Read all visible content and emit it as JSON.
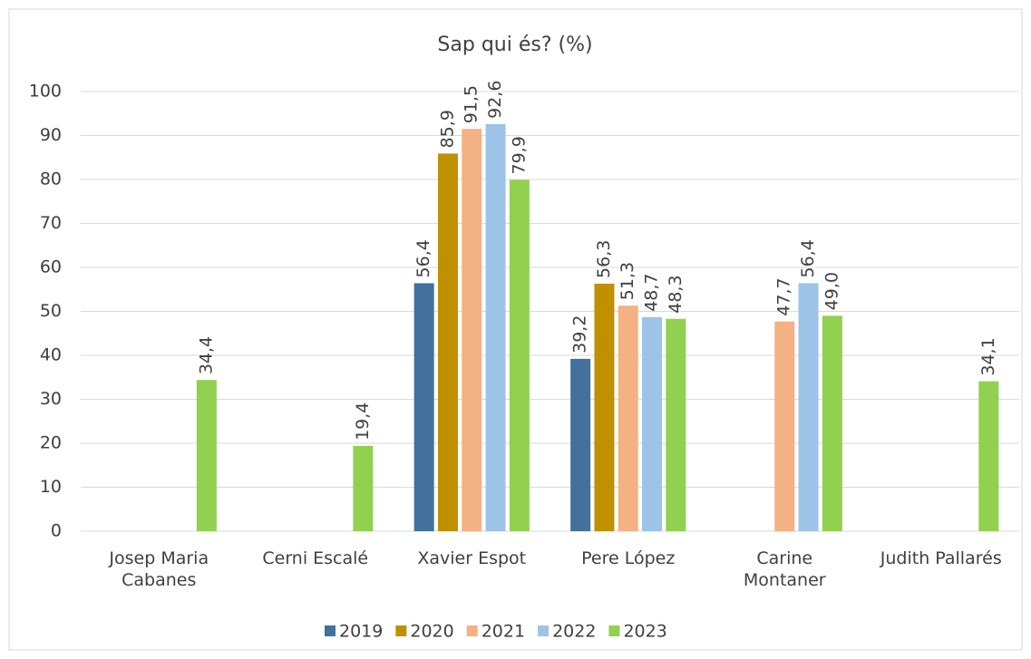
{
  "chart_data": {
    "type": "bar",
    "title": "Sap qui és? (%)",
    "categories": [
      "Josep Maria Cabanes",
      "Cerni Escalé",
      "Xavier Espot",
      "Pere López",
      "Carine Montaner",
      "Judith Pallarés"
    ],
    "series": [
      {
        "name": "2019",
        "color": "#41719c",
        "values": [
          null,
          null,
          56.4,
          39.2,
          null,
          null
        ],
        "value_labels": [
          null,
          null,
          "56,4",
          "39,2",
          null,
          null
        ]
      },
      {
        "name": "2020",
        "color": "#bf9000",
        "values": [
          null,
          null,
          85.9,
          56.3,
          null,
          null
        ],
        "value_labels": [
          null,
          null,
          "85,9",
          "56,3",
          null,
          null
        ]
      },
      {
        "name": "2021",
        "color": "#f4b183",
        "values": [
          null,
          null,
          91.5,
          51.3,
          47.7,
          null
        ],
        "value_labels": [
          null,
          null,
          "91,5",
          "51,3",
          "47,7",
          null
        ]
      },
      {
        "name": "2022",
        "color": "#9dc3e6",
        "values": [
          null,
          null,
          92.6,
          48.7,
          56.4,
          null
        ],
        "value_labels": [
          null,
          null,
          "92,6",
          "48,7",
          "56,4",
          null
        ]
      },
      {
        "name": "2023",
        "color": "#92d050",
        "values": [
          34.4,
          19.4,
          79.9,
          48.3,
          49.0,
          34.1
        ],
        "value_labels": [
          "34,4",
          "19,4",
          "79,9",
          "48,3",
          "49,0",
          "34,1"
        ]
      }
    ],
    "ylim": [
      0,
      100
    ],
    "yticks": [
      0,
      10,
      20,
      30,
      40,
      50,
      60,
      70,
      80,
      90,
      100
    ],
    "grid": true,
    "legend": "bottom"
  }
}
